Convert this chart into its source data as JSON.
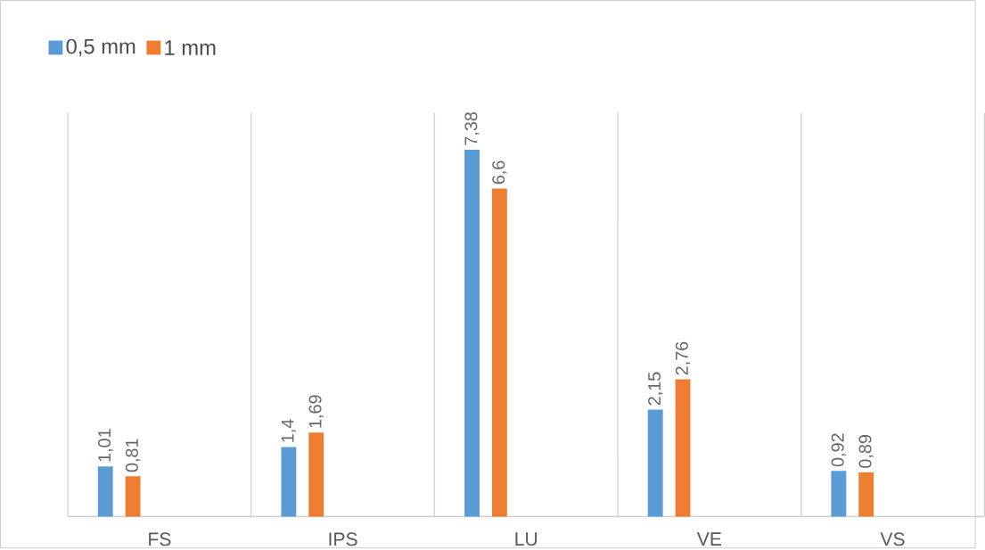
{
  "chart_data": {
    "type": "bar",
    "categories": [
      "FS",
      "IPS",
      "LU",
      "VE",
      "VS"
    ],
    "series": [
      {
        "name": "0,5 mm",
        "color": "#5b9bd5",
        "values": [
          1.01,
          1.4,
          7.38,
          2.15,
          0.92
        ],
        "value_labels": [
          "1,01",
          "1,4",
          "7,38",
          "2,15",
          "0,92"
        ]
      },
      {
        "name": "1 mm",
        "color": "#ed7d31",
        "values": [
          0.81,
          1.69,
          6.6,
          2.76,
          0.89
        ],
        "value_labels": [
          "0,81",
          "1,69",
          "6,6",
          "2,76",
          "0,89"
        ]
      }
    ],
    "grid": "x",
    "legend": "top left"
  }
}
